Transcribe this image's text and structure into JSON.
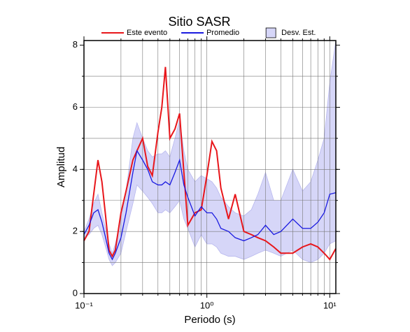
{
  "chart_data": {
    "type": "line",
    "title": "Sitio SASR",
    "x_label": "Periodo (s)",
    "y_label": "Amplitud",
    "x_scale": "log",
    "xlim": [
      0.1,
      11.2
    ],
    "ylim": [
      0,
      8.15
    ],
    "xticks": [
      {
        "value": 0.1,
        "label": "10⁻¹"
      },
      {
        "value": 1,
        "label": "10⁰"
      },
      {
        "value": 10,
        "label": "10¹"
      }
    ],
    "xgrid": [
      0.2,
      0.3,
      0.4,
      0.5,
      0.6,
      0.7,
      0.8,
      0.9,
      2,
      3,
      4,
      5,
      6,
      7,
      8,
      9
    ],
    "yticks": [
      0,
      2,
      4,
      6,
      8
    ],
    "ygrid": [
      1,
      2,
      3,
      4,
      5,
      6,
      7
    ],
    "grid": true,
    "legend": "top",
    "x": [
      0.1,
      0.11,
      0.12,
      0.13,
      0.14,
      0.15,
      0.16,
      0.17,
      0.18,
      0.2,
      0.22,
      0.25,
      0.27,
      0.3,
      0.33,
      0.36,
      0.4,
      0.43,
      0.46,
      0.5,
      0.55,
      0.6,
      0.65,
      0.7,
      0.8,
      0.9,
      1.0,
      1.1,
      1.2,
      1.3,
      1.5,
      1.7,
      2.0,
      2.3,
      2.6,
      3.0,
      3.5,
      4.0,
      5.0,
      6.0,
      7.0,
      8.0,
      9.0,
      10,
      11.2
    ],
    "band": {
      "name": "Desv. Est.",
      "color": "#d6d6f8",
      "lower": [
        1.8,
        1.9,
        2.1,
        2.2,
        1.9,
        1.5,
        1.1,
        0.9,
        1.0,
        1.3,
        2.0,
        2.9,
        3.5,
        3.3,
        3.1,
        2.9,
        2.6,
        2.6,
        2.7,
        2.6,
        2.8,
        3.0,
        2.4,
        2.1,
        1.5,
        1.9,
        1.6,
        1.6,
        1.5,
        1.3,
        1.2,
        1.2,
        1.1,
        1.2,
        1.3,
        1.4,
        1.3,
        1.2,
        1.4,
        1.1,
        1.0,
        1.1,
        1.3,
        1.6,
        1.7
      ],
      "upper": [
        2.0,
        2.4,
        2.9,
        3.2,
        2.6,
        2.1,
        1.6,
        1.3,
        1.6,
        2.4,
        3.3,
        5.0,
        5.5,
        5.0,
        4.6,
        4.4,
        4.5,
        4.5,
        4.6,
        4.4,
        5.0,
        5.6,
        4.6,
        4.0,
        3.6,
        3.8,
        3.7,
        3.6,
        3.4,
        3.1,
        2.8,
        2.6,
        2.5,
        2.7,
        3.2,
        3.9,
        3.0,
        3.0,
        4.0,
        3.3,
        3.6,
        4.3,
        5.0,
        6.8,
        8.15
      ]
    },
    "series": [
      {
        "name": "Este evento",
        "color": "#e8161b",
        "values": [
          1.7,
          2.0,
          3.2,
          4.3,
          3.6,
          2.5,
          1.4,
          1.2,
          1.4,
          2.6,
          3.3,
          4.3,
          4.6,
          5.0,
          4.1,
          3.8,
          5.2,
          6.0,
          7.3,
          5.0,
          5.3,
          5.8,
          3.9,
          2.2,
          2.6,
          2.7,
          3.8,
          4.9,
          4.6,
          3.4,
          2.4,
          3.2,
          2.0,
          1.9,
          1.8,
          1.7,
          1.5,
          1.3,
          1.3,
          1.5,
          1.6,
          1.5,
          1.3,
          1.1,
          1.45
        ]
      },
      {
        "name": "Promedio",
        "color": "#1a1ae0",
        "values": [
          1.9,
          2.2,
          2.6,
          2.7,
          2.3,
          1.8,
          1.3,
          1.1,
          1.3,
          1.8,
          2.6,
          3.9,
          4.6,
          4.3,
          4.0,
          3.6,
          3.5,
          3.5,
          3.6,
          3.5,
          3.9,
          4.3,
          3.5,
          3.1,
          2.5,
          2.8,
          2.6,
          2.6,
          2.4,
          2.1,
          2.0,
          1.8,
          1.7,
          1.8,
          1.9,
          2.2,
          1.9,
          2.0,
          2.4,
          2.1,
          2.1,
          2.3,
          2.6,
          3.2,
          3.25
        ]
      }
    ]
  }
}
